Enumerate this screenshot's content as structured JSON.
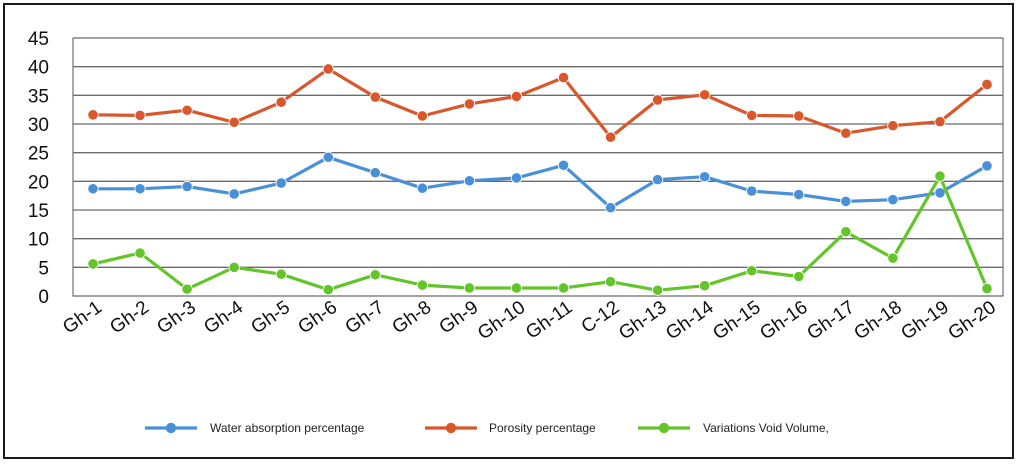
{
  "chart_data": {
    "type": "line",
    "categories": [
      "Gh-1",
      "Gh-2",
      "Gh-3",
      "Gh-4",
      "Gh-5",
      "Gh-6",
      "Gh-7",
      "Gh-8",
      "Gh-9",
      "Gh-10",
      "Gh-11",
      "C-12",
      "Gh-13",
      "Gh-14",
      "Gh-15",
      "Gh-16",
      "Gh-17",
      "Gh-18",
      "Gh-19",
      "Gh-20"
    ],
    "ylim": [
      0,
      45
    ],
    "yticks": [
      0,
      5,
      10,
      15,
      20,
      25,
      30,
      35,
      40,
      45
    ],
    "grid": true,
    "legend_position": "bottom",
    "title": "",
    "xlabel": "",
    "ylabel": "",
    "series": [
      {
        "name": "Water absorption percentage",
        "color": "#4a90d9",
        "values": [
          18.7,
          18.7,
          19.1,
          17.8,
          19.7,
          24.2,
          21.5,
          18.8,
          20.1,
          20.6,
          22.8,
          15.4,
          20.3,
          20.8,
          18.3,
          17.7,
          16.5,
          16.8,
          18.0,
          22.7
        ]
      },
      {
        "name": "Porosity percentage",
        "color": "#d9572b",
        "values": [
          31.6,
          31.5,
          32.4,
          30.3,
          33.8,
          39.6,
          34.7,
          31.4,
          33.5,
          34.8,
          38.1,
          27.7,
          34.2,
          35.1,
          31.5,
          31.4,
          28.4,
          29.7,
          30.4,
          36.9
        ]
      },
      {
        "name": "Variations  Void Volume,",
        "color": "#63c52a",
        "values": [
          5.6,
          7.5,
          1.2,
          5.0,
          3.8,
          1.1,
          3.7,
          1.9,
          1.4,
          1.4,
          1.4,
          2.5,
          1.0,
          1.8,
          4.4,
          3.4,
          11.2,
          6.6,
          20.9,
          1.3
        ]
      }
    ]
  }
}
